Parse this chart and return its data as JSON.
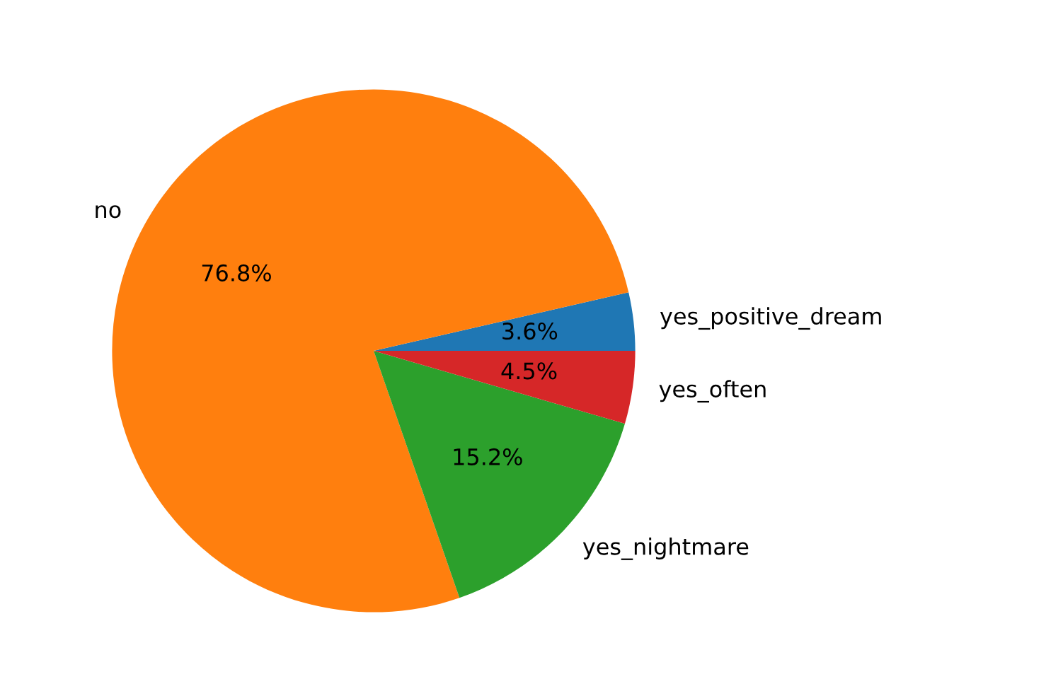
{
  "chart_data": {
    "type": "pie",
    "categories": [
      "yes_positive_dream",
      "no",
      "yes_nightmare",
      "yes_often"
    ],
    "values": [
      3.6,
      76.8,
      15.2,
      4.5
    ],
    "colors": [
      "#1f77b4",
      "#ff7f0e",
      "#2ca02c",
      "#d62728"
    ],
    "value_labels": [
      "3.6%",
      "76.8%",
      "15.2%",
      "4.5%"
    ],
    "legend": false
  }
}
